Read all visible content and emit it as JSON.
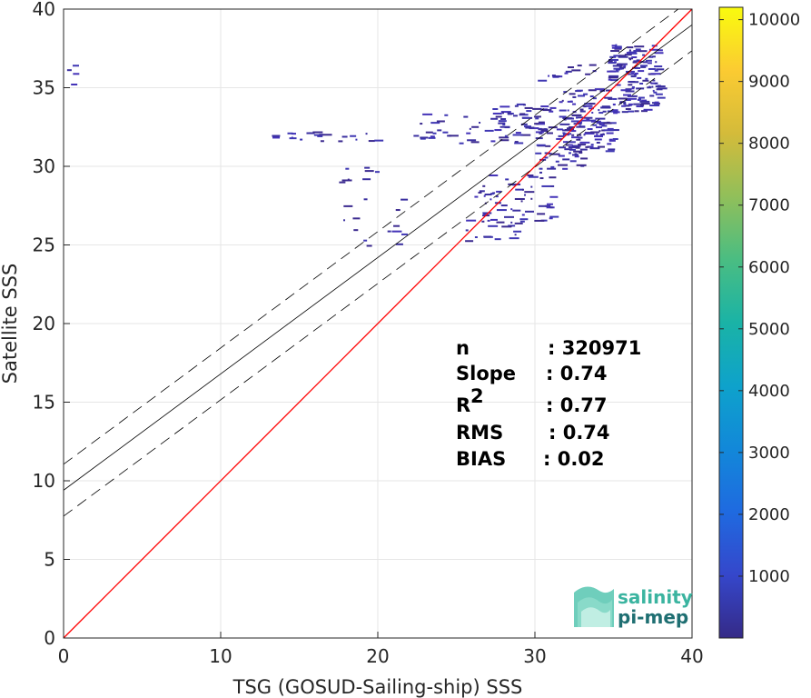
{
  "chart_data": {
    "type": "heatmap",
    "subtype": "density-scatter",
    "xlabel": "TSG (GOSUD-Sailing-ship) SSS",
    "ylabel": "Satellite SSS",
    "xlim": [
      0,
      40
    ],
    "ylim": [
      0,
      40
    ],
    "xticks": [
      0,
      10,
      20,
      30,
      40
    ],
    "yticks": [
      0,
      5,
      10,
      15,
      20,
      25,
      30,
      35,
      40
    ],
    "grid": true,
    "colorbar": {
      "colormap": "parula",
      "range": [
        0,
        10200
      ],
      "ticks": [
        1000,
        2000,
        3000,
        4000,
        5000,
        6000,
        7000,
        8000,
        9000,
        10000
      ]
    },
    "reference_line": {
      "slope": 1,
      "intercept": 0,
      "color": "#ff0000"
    },
    "regression_line": {
      "slope": 0.74,
      "intercept": 9.4,
      "color": "#000000"
    },
    "regression_band": {
      "offset": 1.65,
      "style": "dashed"
    },
    "stats": [
      {
        "label": "n",
        "value": ": 320971",
        "sup": ""
      },
      {
        "label": "Slope",
        "value": ": 0.74",
        "sup": ""
      },
      {
        "label": "R",
        "value": ": 0.77",
        "sup": "2"
      },
      {
        "label": "RMS",
        "value": ": 0.74",
        "sup": ""
      },
      {
        "label": "BIAS",
        "value": ": 0.02",
        "sup": ""
      }
    ],
    "clusters": [
      {
        "x": [
          34.5,
          37.8
        ],
        "y": [
          33.5,
          37.8
        ],
        "count": 140
      },
      {
        "x": [
          31.5,
          35.0
        ],
        "y": [
          31.0,
          35.0
        ],
        "count": 120
      },
      {
        "x": [
          30.0,
          33.0
        ],
        "y": [
          29.5,
          33.0
        ],
        "count": 50
      },
      {
        "x": [
          27.0,
          31.0
        ],
        "y": [
          32.0,
          34.0
        ],
        "count": 45
      },
      {
        "x": [
          22.0,
          29.0
        ],
        "y": [
          31.5,
          33.5
        ],
        "count": 35
      },
      {
        "x": [
          26.0,
          31.0
        ],
        "y": [
          26.5,
          29.5
        ],
        "count": 55
      },
      {
        "x": [
          25.5,
          29.0
        ],
        "y": [
          25.0,
          27.0
        ],
        "count": 20
      },
      {
        "x": [
          13.0,
          20.0
        ],
        "y": [
          31.6,
          32.3
        ],
        "count": 22
      },
      {
        "x": [
          17.0,
          22.0
        ],
        "y": [
          25.0,
          28.0
        ],
        "count": 14
      },
      {
        "x": [
          17.5,
          20.5
        ],
        "y": [
          29.0,
          30.5
        ],
        "count": 8
      },
      {
        "x": [
          30.0,
          36.0
        ],
        "y": [
          35.5,
          36.5
        ],
        "count": 18
      },
      {
        "x": [
          0.0,
          0.9
        ],
        "y": [
          35.0,
          36.5
        ],
        "count": 4
      }
    ],
    "logo_text": [
      "salinity",
      "pi-mep"
    ]
  }
}
